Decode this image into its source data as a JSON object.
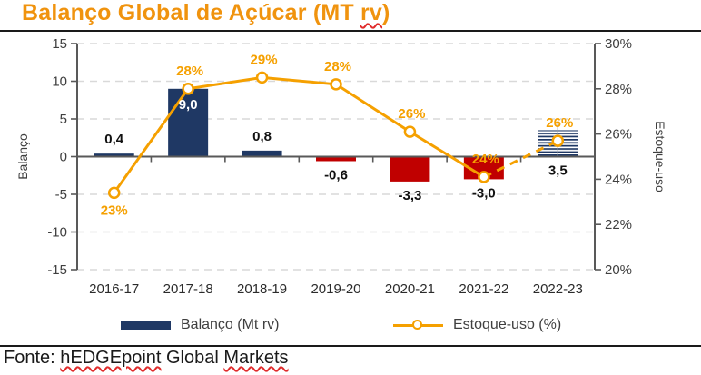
{
  "title": {
    "prefix": "Balanço Global de Açúcar (MT ",
    "misspelled": "rv",
    "suffix": ")"
  },
  "footer": {
    "label": "Fonte: ",
    "source_word1": "hEDGEpoint",
    "middle": " Global ",
    "source_word2": "Markets"
  },
  "legend": {
    "bar_label": "Balanço (Mt rv)",
    "line_label": "Estoque-uso (%)"
  },
  "colors": {
    "navy": "#1F3864",
    "red": "#C00000",
    "orange": "#F5A000",
    "title_orange": "#F0930E",
    "axis": "#595959",
    "grid": "#D9D9D9",
    "tick_text": "#3F3F3F",
    "x_text": "#2B2B2B",
    "bar_label_text": "#111111",
    "bar_label_inside": "#FFFFFF",
    "marker_fill": "#FFFFFF",
    "leader": "#9AA0A6"
  },
  "chart_data": {
    "type": "combo-bar-line",
    "categories": [
      "2016-17",
      "2017-18",
      "2018-19",
      "2019-20",
      "2020-21",
      "2021-22",
      "2022-23"
    ],
    "series": [
      {
        "name": "Balanço (Mt rv)",
        "type": "bar",
        "axis": "left",
        "values": [
          0.4,
          9.0,
          0.8,
          -0.6,
          -3.3,
          -3.0,
          3.5
        ],
        "labels": [
          "0,4",
          "9,0",
          "0,8",
          "-0,6",
          "-3,3",
          "-3,0",
          "3,5"
        ],
        "styles": [
          "navy",
          "navy",
          "navy",
          "red",
          "red",
          "red",
          "hatch"
        ],
        "label_side": [
          "above",
          "inside",
          "above",
          "below",
          "below",
          "below",
          "below"
        ]
      },
      {
        "name": "Estoque-uso (%)",
        "type": "line",
        "axis": "right",
        "values": [
          23,
          28,
          29,
          28,
          26,
          24,
          26
        ],
        "plot_values": [
          23.4,
          28.0,
          28.5,
          28.2,
          26.1,
          24.1,
          25.7
        ],
        "labels": [
          "23%",
          "28%",
          "29%",
          "28%",
          "26%",
          "24%",
          "26%"
        ],
        "label_side": [
          "below",
          "above",
          "above",
          "above",
          "above",
          "above",
          "above"
        ],
        "dashed_from": 5
      }
    ],
    "left_axis": {
      "title": "Balanço",
      "min": -15,
      "max": 15,
      "ticks": [
        15,
        10,
        5,
        0,
        -5,
        -10,
        -15
      ],
      "tick_labels": [
        "15",
        "10",
        "5",
        "0",
        "-5",
        "-10",
        "-15"
      ]
    },
    "right_axis": {
      "title": "Estoque-uso",
      "min": 20,
      "max": 30,
      "ticks": [
        30,
        28,
        26,
        24,
        22,
        20
      ],
      "tick_labels": [
        "30%",
        "28%",
        "26%",
        "24%",
        "22%",
        "20%"
      ]
    },
    "grid": true,
    "legend_position": "bottom"
  }
}
